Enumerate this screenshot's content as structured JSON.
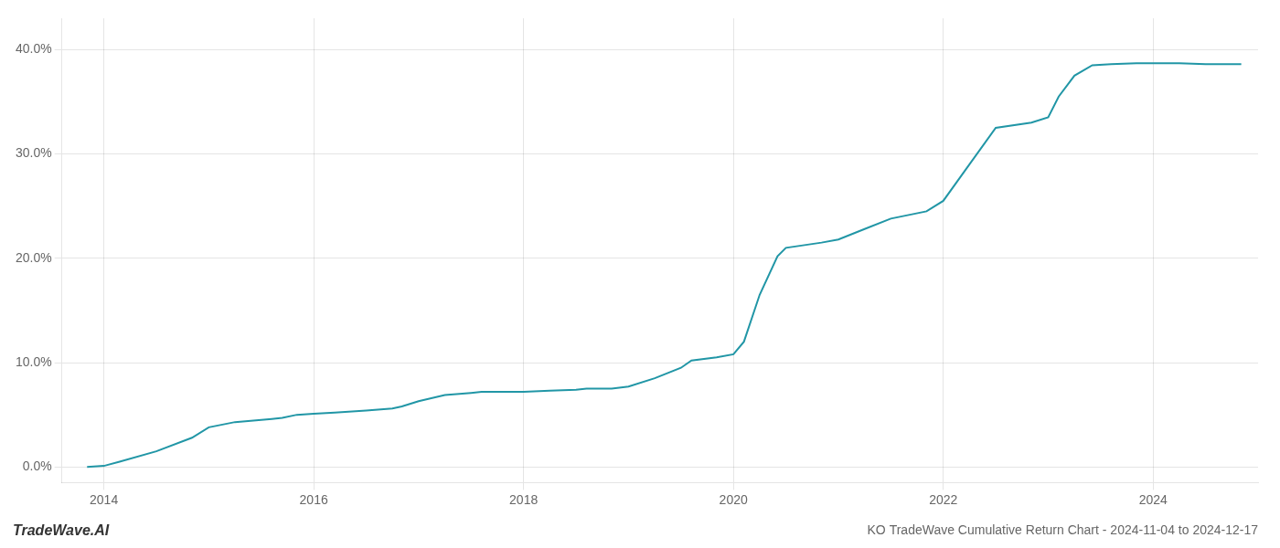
{
  "chart_data": {
    "type": "line",
    "title": "KO TradeWave Cumulative Return Chart - 2024-11-04 to 2024-12-17",
    "annotations": [
      "TradeWave.AI"
    ],
    "x": [
      2013.84,
      2014.0,
      2014.15,
      2014.5,
      2014.84,
      2015.0,
      2015.25,
      2015.5,
      2015.6,
      2015.7,
      2015.84,
      2016.0,
      2016.2,
      2016.5,
      2016.75,
      2016.84,
      2017.0,
      2017.25,
      2017.5,
      2017.6,
      2017.84,
      2018.0,
      2018.25,
      2018.5,
      2018.6,
      2018.84,
      2019.0,
      2019.25,
      2019.5,
      2019.6,
      2019.84,
      2020.0,
      2020.1,
      2020.25,
      2020.42,
      2020.5,
      2020.84,
      2021.0,
      2021.25,
      2021.5,
      2021.84,
      2022.0,
      2022.25,
      2022.5,
      2022.84,
      2023.0,
      2023.1,
      2023.25,
      2023.42,
      2023.6,
      2023.84,
      2024.0,
      2024.25,
      2024.5,
      2024.84
    ],
    "values": [
      0.0,
      0.1,
      0.5,
      1.5,
      2.8,
      3.8,
      4.3,
      4.5,
      4.6,
      4.7,
      5.0,
      5.1,
      5.2,
      5.4,
      5.6,
      5.8,
      6.3,
      6.9,
      7.1,
      7.2,
      7.2,
      7.2,
      7.3,
      7.4,
      7.5,
      7.5,
      7.7,
      8.5,
      9.5,
      10.2,
      10.5,
      10.8,
      12.0,
      16.5,
      20.2,
      21.0,
      21.5,
      21.8,
      22.8,
      23.8,
      24.5,
      25.5,
      29.0,
      32.5,
      33.0,
      33.5,
      35.5,
      37.5,
      38.5,
      38.6,
      38.7,
      38.7,
      38.7,
      38.6,
      38.6
    ],
    "color": "#2196a6",
    "xlim": [
      2013.6,
      2025.0
    ],
    "ylim": [
      -1.5,
      43
    ],
    "xticks": [
      2014,
      2016,
      2018,
      2020,
      2022,
      2024
    ],
    "yticks": [
      {
        "value": 0.0,
        "label": "0.0%"
      },
      {
        "value": 10.0,
        "label": "10.0%"
      },
      {
        "value": 20.0,
        "label": "20.0%"
      },
      {
        "value": 30.0,
        "label": "30.0%"
      },
      {
        "value": 40.0,
        "label": "40.0%"
      }
    ],
    "grid": true
  }
}
